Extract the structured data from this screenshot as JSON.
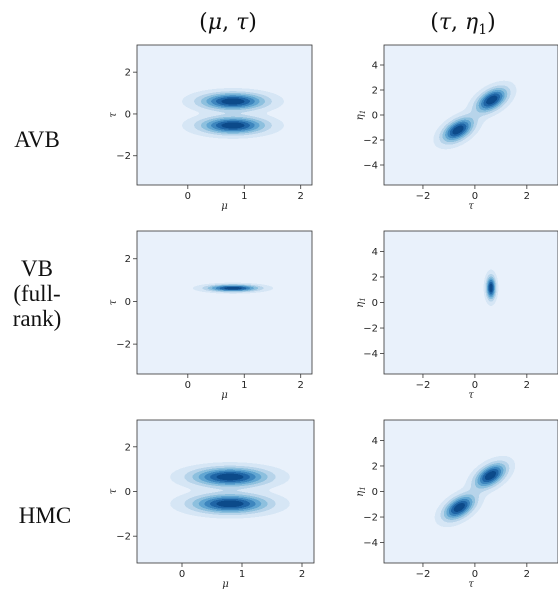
{
  "columns": [
    {
      "title_pre": "(",
      "sym1": "μ",
      "sep": ", ",
      "sym2": "τ",
      "sub2": "",
      "title_post": ")"
    },
    {
      "title_pre": "(",
      "sym1": "τ",
      "sep": ", ",
      "sym2": "η",
      "sub2": "1",
      "title_post": ")"
    }
  ],
  "rows": [
    {
      "label_lines": [
        "AVB"
      ]
    },
    {
      "label_lines": [
        "VB",
        "(full-",
        "rank)"
      ]
    },
    {
      "label_lines": [
        "HMC"
      ]
    }
  ],
  "colors": {
    "panel_bg": "#e9f1fb",
    "levels": [
      "#d6e6f5",
      "#b7d4ea",
      "#8dc0de",
      "#62a6d2",
      "#3d86be",
      "#1f65a6",
      "#0c4a8a"
    ]
  },
  "chart_data": [
    {
      "type": "contour",
      "row": "AVB",
      "column": "(μ, τ)",
      "xlabel": "μ",
      "ylabel": "τ",
      "xlim": [
        -0.9,
        2.2
      ],
      "ylim": [
        -3.4,
        3.3
      ],
      "xticks": [
        0,
        1,
        2
      ],
      "yticks": [
        -2,
        0,
        2
      ],
      "components": [
        {
          "mx": 0.8,
          "my": 0.6,
          "sx": 0.38,
          "sy": 0.27,
          "rho": 0,
          "w": 1
        },
        {
          "mx": 0.8,
          "my": -0.55,
          "sx": 0.38,
          "sy": 0.27,
          "rho": 0,
          "w": 1
        }
      ]
    },
    {
      "type": "contour",
      "row": "AVB",
      "column": "(τ, η1)",
      "xlabel": "τ",
      "ylabel": "η1",
      "xlim": [
        -3.5,
        3.2
      ],
      "ylim": [
        -5.6,
        5.6
      ],
      "xticks": [
        -2,
        0,
        2
      ],
      "yticks": [
        -4,
        -2,
        0,
        2,
        4
      ],
      "components": [
        {
          "mx": 0.65,
          "my": 1.2,
          "sx": 0.4,
          "sy": 0.65,
          "rho": 0.5,
          "w": 1
        },
        {
          "mx": -0.65,
          "my": -1.2,
          "sx": 0.4,
          "sy": 0.65,
          "rho": 0.5,
          "w": 1
        }
      ]
    },
    {
      "type": "contour",
      "row": "VB (full-rank)",
      "column": "(μ, τ)",
      "xlabel": "μ",
      "ylabel": "τ",
      "xlim": [
        -0.9,
        2.2
      ],
      "ylim": [
        -3.4,
        3.3
      ],
      "xticks": [
        0,
        1,
        2
      ],
      "yticks": [
        -2,
        0,
        2
      ],
      "components": [
        {
          "mx": 0.8,
          "my": 0.62,
          "sx": 0.3,
          "sy": 0.11,
          "rho": 0,
          "w": 1
        }
      ]
    },
    {
      "type": "contour",
      "row": "VB (full-rank)",
      "column": "(τ, η1)",
      "xlabel": "τ",
      "ylabel": "η1",
      "xlim": [
        -3.5,
        3.2
      ],
      "ylim": [
        -5.6,
        5.6
      ],
      "xticks": [
        -2,
        0,
        2
      ],
      "yticks": [
        -4,
        -2,
        0,
        2,
        4
      ],
      "components": [
        {
          "mx": 0.62,
          "my": 1.15,
          "sx": 0.12,
          "sy": 0.6,
          "rho": 0,
          "w": 1
        }
      ]
    },
    {
      "type": "contour",
      "row": "HMC",
      "column": "(μ, τ)",
      "xlabel": "μ",
      "ylabel": "τ",
      "xlim": [
        -0.75,
        2.2
      ],
      "ylim": [
        -3.2,
        3.2
      ],
      "xticks": [
        0,
        1,
        2
      ],
      "yticks": [
        -2,
        0,
        2
      ],
      "components": [
        {
          "mx": 0.8,
          "my": 0.65,
          "sx": 0.42,
          "sy": 0.28,
          "rho": 0,
          "w": 1
        },
        {
          "mx": 0.8,
          "my": -0.55,
          "sx": 0.42,
          "sy": 0.28,
          "rho": 0,
          "w": 1
        }
      ]
    },
    {
      "type": "contour",
      "row": "HMC",
      "column": "(τ, η1)",
      "xlabel": "τ",
      "ylabel": "η1",
      "xlim": [
        -3.5,
        3.2
      ],
      "ylim": [
        -5.6,
        5.6
      ],
      "xticks": [
        -2,
        0,
        2
      ],
      "yticks": [
        -4,
        -2,
        0,
        2,
        4
      ],
      "components": [
        {
          "mx": 0.6,
          "my": 1.25,
          "sx": 0.4,
          "sy": 0.65,
          "rho": 0.5,
          "w": 1
        },
        {
          "mx": -0.6,
          "my": -1.25,
          "sx": 0.4,
          "sy": 0.65,
          "rho": 0.5,
          "w": 1
        }
      ]
    }
  ]
}
